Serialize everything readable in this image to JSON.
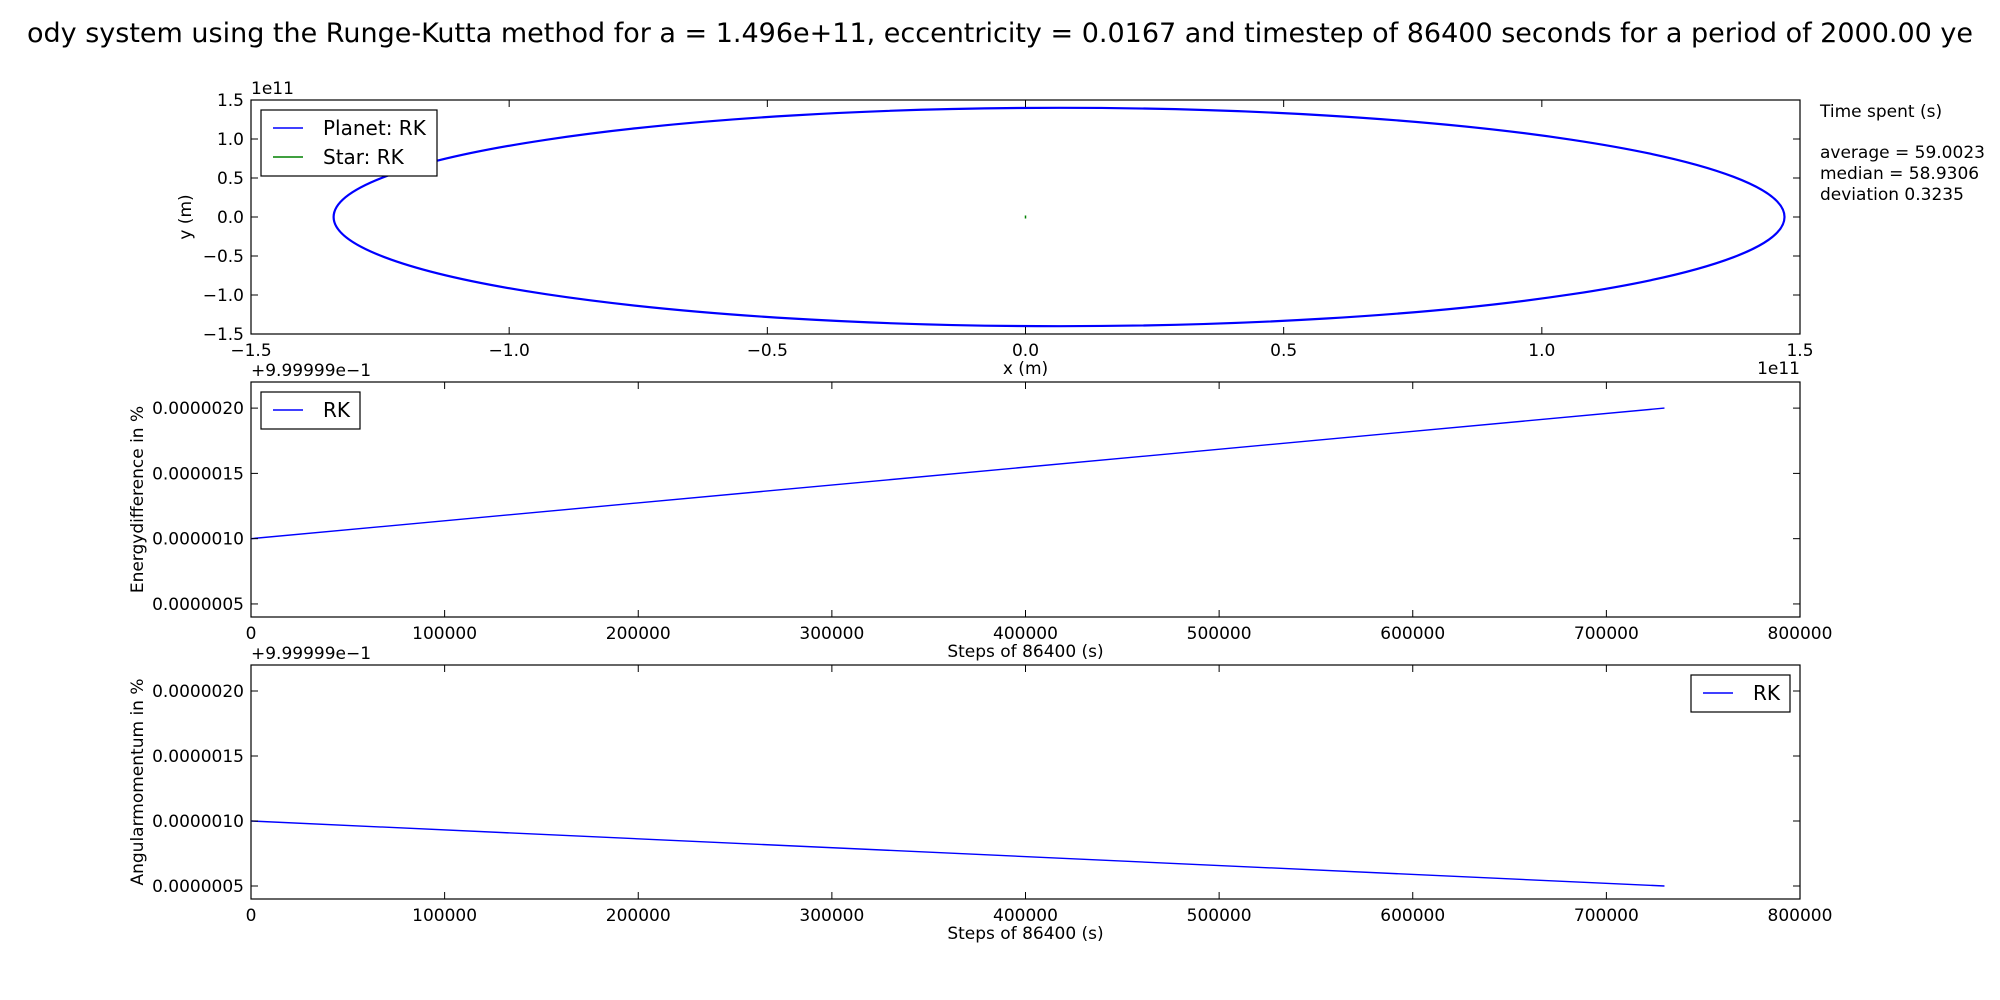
{
  "figure": {
    "title": "ody system using the Runge-Kutta method for a = 1.496e+11, eccentricity = 0.0167 and timestep of 86400 seconds for a period of 2000.00 ye",
    "side_text": {
      "heading": "Time spent (s)",
      "lines": [
        "average = 59.0023",
        "median = 58.9306",
        "deviation 0.3235"
      ]
    }
  },
  "chart_data": [
    {
      "type": "line",
      "title": "",
      "xlabel": "x (m)",
      "ylabel": "y (m)",
      "xlim": [
        -150000000000.0,
        150000000000.0
      ],
      "ylim": [
        -150000000000.0,
        150000000000.0
      ],
      "x_offset_label": "1e11",
      "y_offset_label": "1e11",
      "xticks": [
        -1.5,
        -1.0,
        -0.5,
        0.0,
        0.5,
        1.0,
        1.5
      ],
      "xtick_labels": [
        "−1.5",
        "−1.0",
        "−0.5",
        "0.0",
        "0.5",
        "1.0",
        "1.5"
      ],
      "yticks": [
        -1.5,
        -1.0,
        -0.5,
        0.0,
        0.5,
        1.0,
        1.5
      ],
      "ytick_labels": [
        "−1.5",
        "−1.0",
        "−0.5",
        "0.0",
        "0.5",
        "1.0",
        "1.5"
      ],
      "grid": false,
      "legend": "upper left",
      "series": [
        {
          "name": "Planet: RK",
          "color": "#0000ff",
          "shape": "ellipse",
          "x_range": [
            -134000000000.0,
            147000000000.0
          ],
          "y_range": [
            -140000000000.0,
            140000000000.0
          ]
        },
        {
          "name": "Star: RK",
          "color": "#008000",
          "shape": "point",
          "x": [
            0.0
          ],
          "y": [
            0.0
          ]
        }
      ]
    },
    {
      "type": "line",
      "title": "",
      "xlabel": "Steps of 86400 (s)",
      "ylabel": "Energydifference in %",
      "y_offset_label": "+9.99999e−1",
      "xlim": [
        0,
        800000
      ],
      "ylim": [
        4e-07,
        2.2e-06
      ],
      "xticks": [
        0,
        100000,
        200000,
        300000,
        400000,
        500000,
        600000,
        700000,
        800000
      ],
      "xtick_labels": [
        "0",
        "100000",
        "200000",
        "300000",
        "400000",
        "500000",
        "600000",
        "700000",
        "800000"
      ],
      "yticks": [
        5e-07,
        1e-06,
        1.5e-06,
        2e-06
      ],
      "ytick_labels": [
        "0.0000005",
        "0.0000010",
        "0.0000015",
        "0.0000020"
      ],
      "grid": false,
      "legend": "upper left",
      "series": [
        {
          "name": "RK",
          "color": "#0000ff",
          "x": [
            0,
            730000
          ],
          "y": [
            1e-06,
            2e-06
          ]
        }
      ]
    },
    {
      "type": "line",
      "title": "",
      "xlabel": "Steps of 86400 (s)",
      "ylabel": "Angularmomentum in  %",
      "y_offset_label": "+9.99999e−1",
      "xlim": [
        0,
        800000
      ],
      "ylim": [
        4e-07,
        2.2e-06
      ],
      "xticks": [
        0,
        100000,
        200000,
        300000,
        400000,
        500000,
        600000,
        700000,
        800000
      ],
      "xtick_labels": [
        "0",
        "100000",
        "200000",
        "300000",
        "400000",
        "500000",
        "600000",
        "700000",
        "800000"
      ],
      "yticks": [
        5e-07,
        1e-06,
        1.5e-06,
        2e-06
      ],
      "ytick_labels": [
        "0.0000005",
        "0.0000010",
        "0.0000015",
        "0.0000020"
      ],
      "grid": false,
      "legend": "upper right",
      "series": [
        {
          "name": "RK",
          "color": "#0000ff",
          "x": [
            0,
            730000
          ],
          "y": [
            1e-06,
            5e-07
          ]
        }
      ]
    }
  ]
}
